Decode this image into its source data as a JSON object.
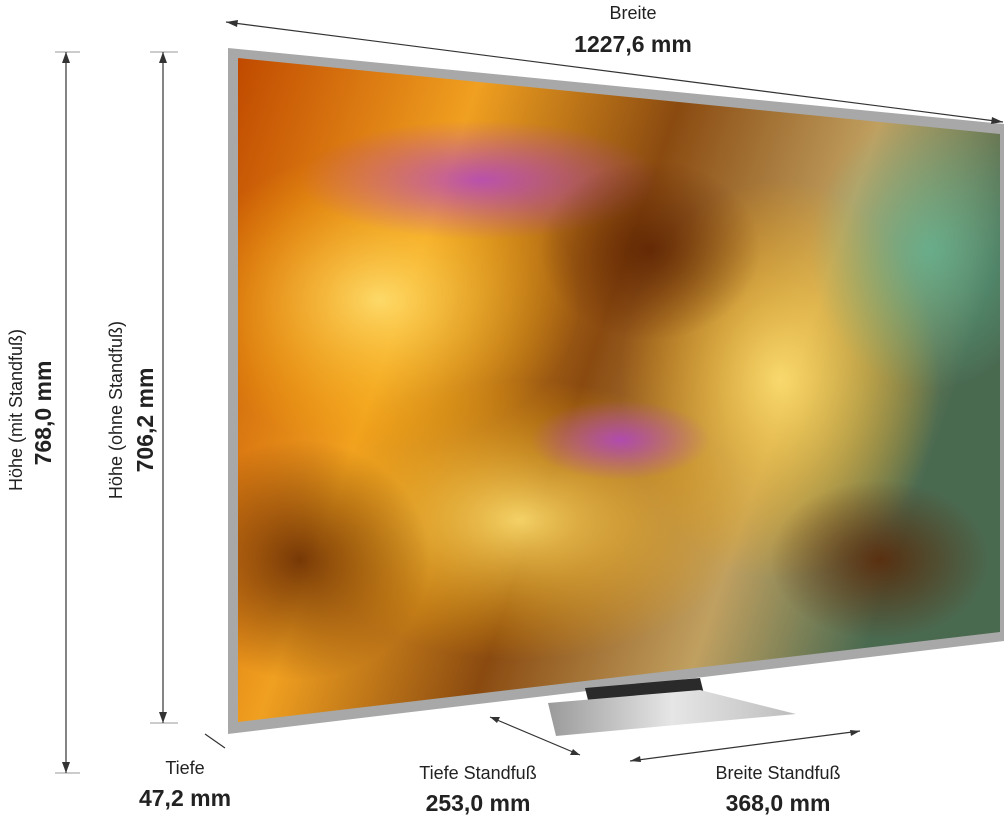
{
  "dimensions": {
    "width": {
      "label": "Breite",
      "value": "1227,6 mm"
    },
    "height_with_stand": {
      "label": "Höhe (mit Standfuß)",
      "value": "768,0 mm"
    },
    "height_without_stand": {
      "label": "Höhe (ohne Standfuß)",
      "value": "706,2 mm"
    },
    "depth": {
      "label": "Tiefe",
      "value": "47,2 mm"
    },
    "stand_depth": {
      "label": "Tiefe Standfuß",
      "value": "253,0 mm"
    },
    "stand_width": {
      "label": "Breite Standfuß",
      "value": "368,0 mm"
    }
  }
}
